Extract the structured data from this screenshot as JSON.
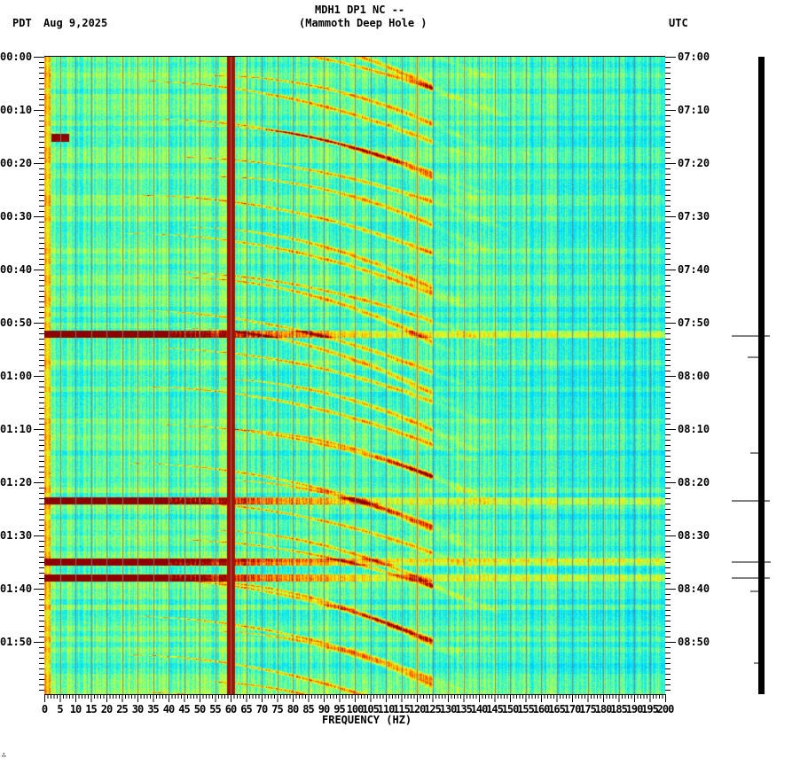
{
  "header": {
    "station": "MDH1 DP1 NC --",
    "location": "(Mammoth Deep Hole )",
    "left_tz": "PDT",
    "date": "Aug 9,2025",
    "right_tz": "UTC"
  },
  "footer": {
    "mark": "∴"
  },
  "chart_data": {
    "type": "heatmap",
    "title": "MDH1 DP1 NC -- (Mammoth Deep Hole )",
    "subtitle": "Aug 9,2025",
    "xlabel": "FREQUENCY (HZ)",
    "ylabel_left": "PDT",
    "ylabel_right": "UTC",
    "xlim": [
      0,
      200
    ],
    "x_ticks": [
      0,
      5,
      10,
      15,
      20,
      25,
      30,
      35,
      40,
      45,
      50,
      55,
      60,
      65,
      70,
      75,
      80,
      85,
      90,
      95,
      100,
      105,
      110,
      115,
      120,
      125,
      130,
      135,
      140,
      145,
      150,
      155,
      160,
      165,
      170,
      175,
      180,
      185,
      190,
      195,
      200
    ],
    "y_ticks_left": [
      "00:00",
      "00:10",
      "00:20",
      "00:30",
      "00:40",
      "00:50",
      "01:00",
      "01:10",
      "01:20",
      "01:30",
      "01:40",
      "01:50"
    ],
    "y_ticks_right": [
      "07:00",
      "07:10",
      "07:20",
      "07:30",
      "07:40",
      "07:50",
      "08:00",
      "08:10",
      "08:20",
      "08:30",
      "08:40",
      "08:50"
    ],
    "time_range_minutes": 120,
    "grid": "vertical lines every 5 Hz",
    "colormap": [
      "#0000aa",
      "#0060ff",
      "#00b0ff",
      "#00e8ff",
      "#60ffa0",
      "#e0ff20",
      "#ffc000",
      "#ff4000",
      "#8b0000"
    ],
    "persistent_lines_hz": [
      60,
      120
    ],
    "broadband_events_minutes": [
      52.2,
      83.5,
      95.0,
      98.0
    ],
    "low_freq_event_minutes": [
      15
    ],
    "harmonic_sweeps": "repeating curved bands sweeping from ~20-40 Hz upward to ~120 Hz, period ~6-10 min",
    "seismogram_event_minutes": [
      52.5,
      56.5,
      74.5,
      83.5,
      95.0,
      98.0,
      100.5
    ]
  }
}
